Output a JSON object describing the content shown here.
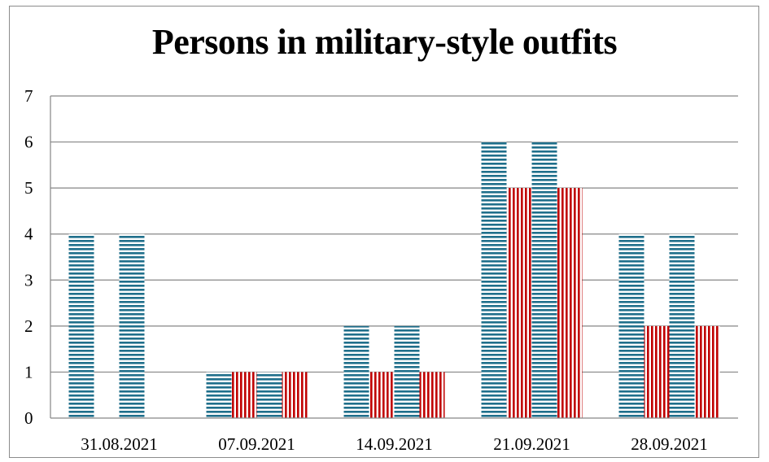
{
  "chart_data": {
    "type": "bar",
    "title": "Persons in military-style outfits",
    "xlabel": "",
    "ylabel": "",
    "ylim": [
      0,
      7
    ],
    "yticks": [
      0,
      1,
      2,
      3,
      4,
      5,
      6,
      7
    ],
    "grid": true,
    "legend": "none",
    "categories": [
      "31.08.2021",
      "07.09.2021",
      "14.09.2021",
      "21.09.2021",
      "28.09.2021"
    ],
    "series": [
      {
        "values": [
          4,
          1,
          2,
          6,
          4
        ],
        "color": "#1f6f8b",
        "pattern": "horizontal-stripes"
      },
      {
        "values": [
          0,
          1,
          1,
          5,
          2
        ],
        "color": "#c00000",
        "pattern": "vertical-stripes"
      },
      {
        "values": [
          4,
          1,
          2,
          6,
          4
        ],
        "color": "#1f6f8b",
        "pattern": "horizontal-stripes"
      },
      {
        "values": [
          0,
          1,
          1,
          5,
          2
        ],
        "color": "#c00000",
        "pattern": "vertical-stripes"
      }
    ]
  }
}
